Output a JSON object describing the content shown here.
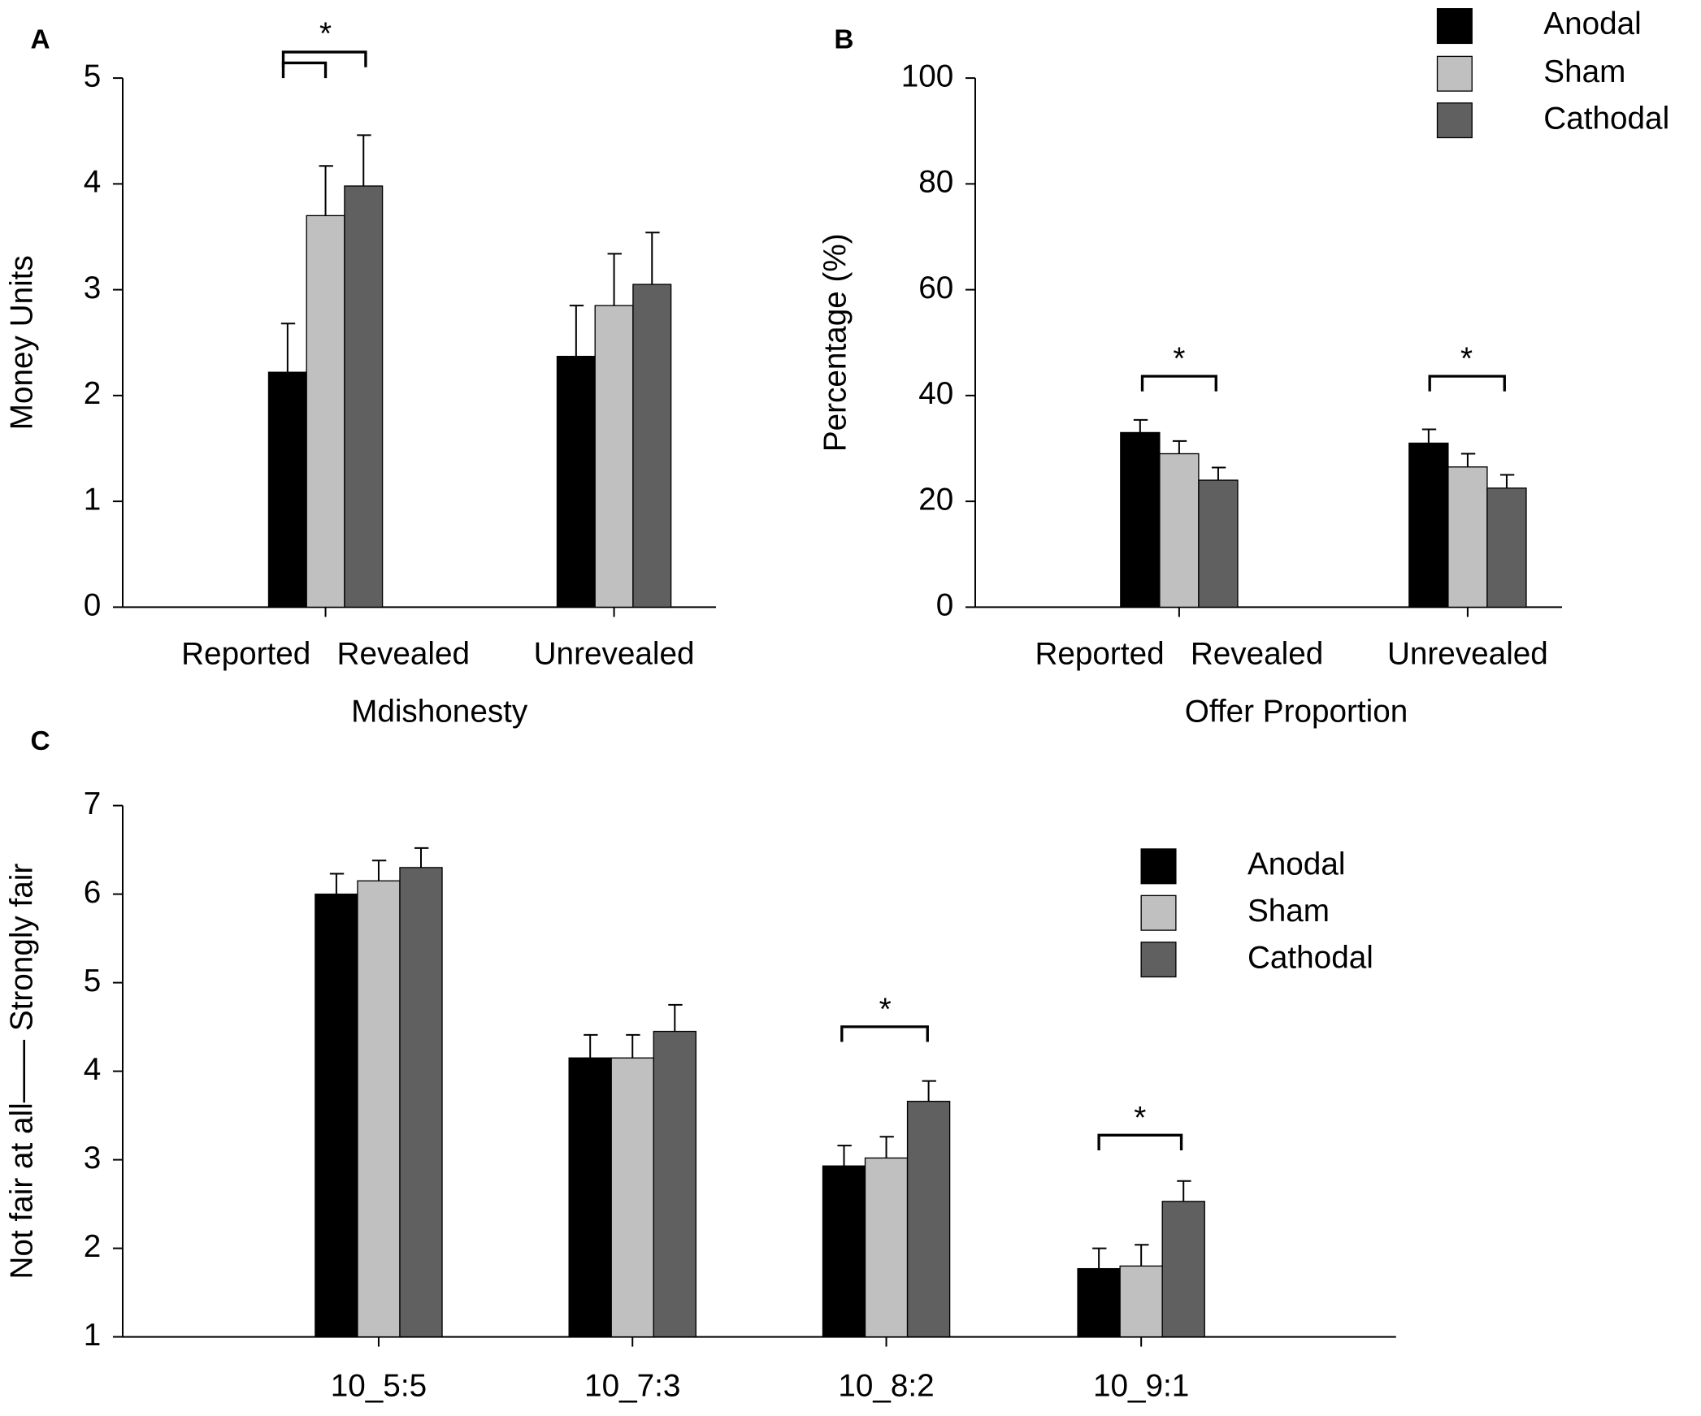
{
  "chart_data": [
    {
      "type": "bar",
      "panel": "A",
      "ylabel": "Money Units",
      "xlabel": "Mdishonesty",
      "categories": [
        "Reported   Revealed",
        "Unrevealed"
      ],
      "series": [
        {
          "name": "Anodal",
          "color": "#000000",
          "values": [
            2.22,
            2.37
          ],
          "errors": [
            0.46,
            0.48
          ]
        },
        {
          "name": "Sham",
          "color": "#c0c0c0",
          "values": [
            3.7,
            2.85
          ],
          "errors": [
            0.47,
            0.49
          ]
        },
        {
          "name": "Cathodal",
          "color": "#606060",
          "values": [
            3.98,
            3.05
          ],
          "errors": [
            0.48,
            0.49
          ]
        }
      ],
      "ylim": [
        0,
        5
      ],
      "yticks": [
        0,
        1,
        2,
        3,
        4,
        5
      ],
      "legend": false,
      "annotations": [
        "*"
      ]
    },
    {
      "type": "bar",
      "panel": "B",
      "ylabel": "Percentage (%)",
      "xlabel": "Offer Proportion",
      "categories": [
        "Reported   Revealed",
        "Unrevealed"
      ],
      "series": [
        {
          "name": "Anodal",
          "color": "#000000",
          "values": [
            33,
            31
          ],
          "errors": [
            2.4,
            2.6
          ]
        },
        {
          "name": "Sham",
          "color": "#c0c0c0",
          "values": [
            29,
            26.5
          ],
          "errors": [
            2.4,
            2.5
          ]
        },
        {
          "name": "Cathodal",
          "color": "#606060",
          "values": [
            24,
            22.5
          ],
          "errors": [
            2.4,
            2.5
          ]
        }
      ],
      "ylim": [
        0,
        100
      ],
      "yticks": [
        0,
        20,
        40,
        60,
        80,
        100
      ],
      "legend": true,
      "annotations": [
        "*",
        "*"
      ]
    },
    {
      "type": "bar",
      "panel": "C",
      "ylabel": "Not fair at all—— Strongly fair",
      "categories": [
        "10_5:5",
        "10_7:3",
        "10_8:2",
        "10_9:1"
      ],
      "series": [
        {
          "name": "Anodal",
          "color": "#000000",
          "values": [
            6.0,
            4.15,
            2.93,
            1.77
          ],
          "errors": [
            0.23,
            0.26,
            0.23,
            0.23
          ]
        },
        {
          "name": "Sham",
          "color": "#c0c0c0",
          "values": [
            6.15,
            4.15,
            3.02,
            1.8
          ],
          "errors": [
            0.23,
            0.26,
            0.24,
            0.24
          ]
        },
        {
          "name": "Cathodal",
          "color": "#606060",
          "values": [
            6.3,
            4.45,
            3.66,
            2.53
          ],
          "errors": [
            0.22,
            0.3,
            0.23,
            0.23
          ]
        }
      ],
      "ylim": [
        1,
        7
      ],
      "yticks": [
        1,
        2,
        3,
        4,
        5,
        6,
        7
      ],
      "legend": true,
      "annotations": [
        "*",
        "*"
      ]
    }
  ]
}
